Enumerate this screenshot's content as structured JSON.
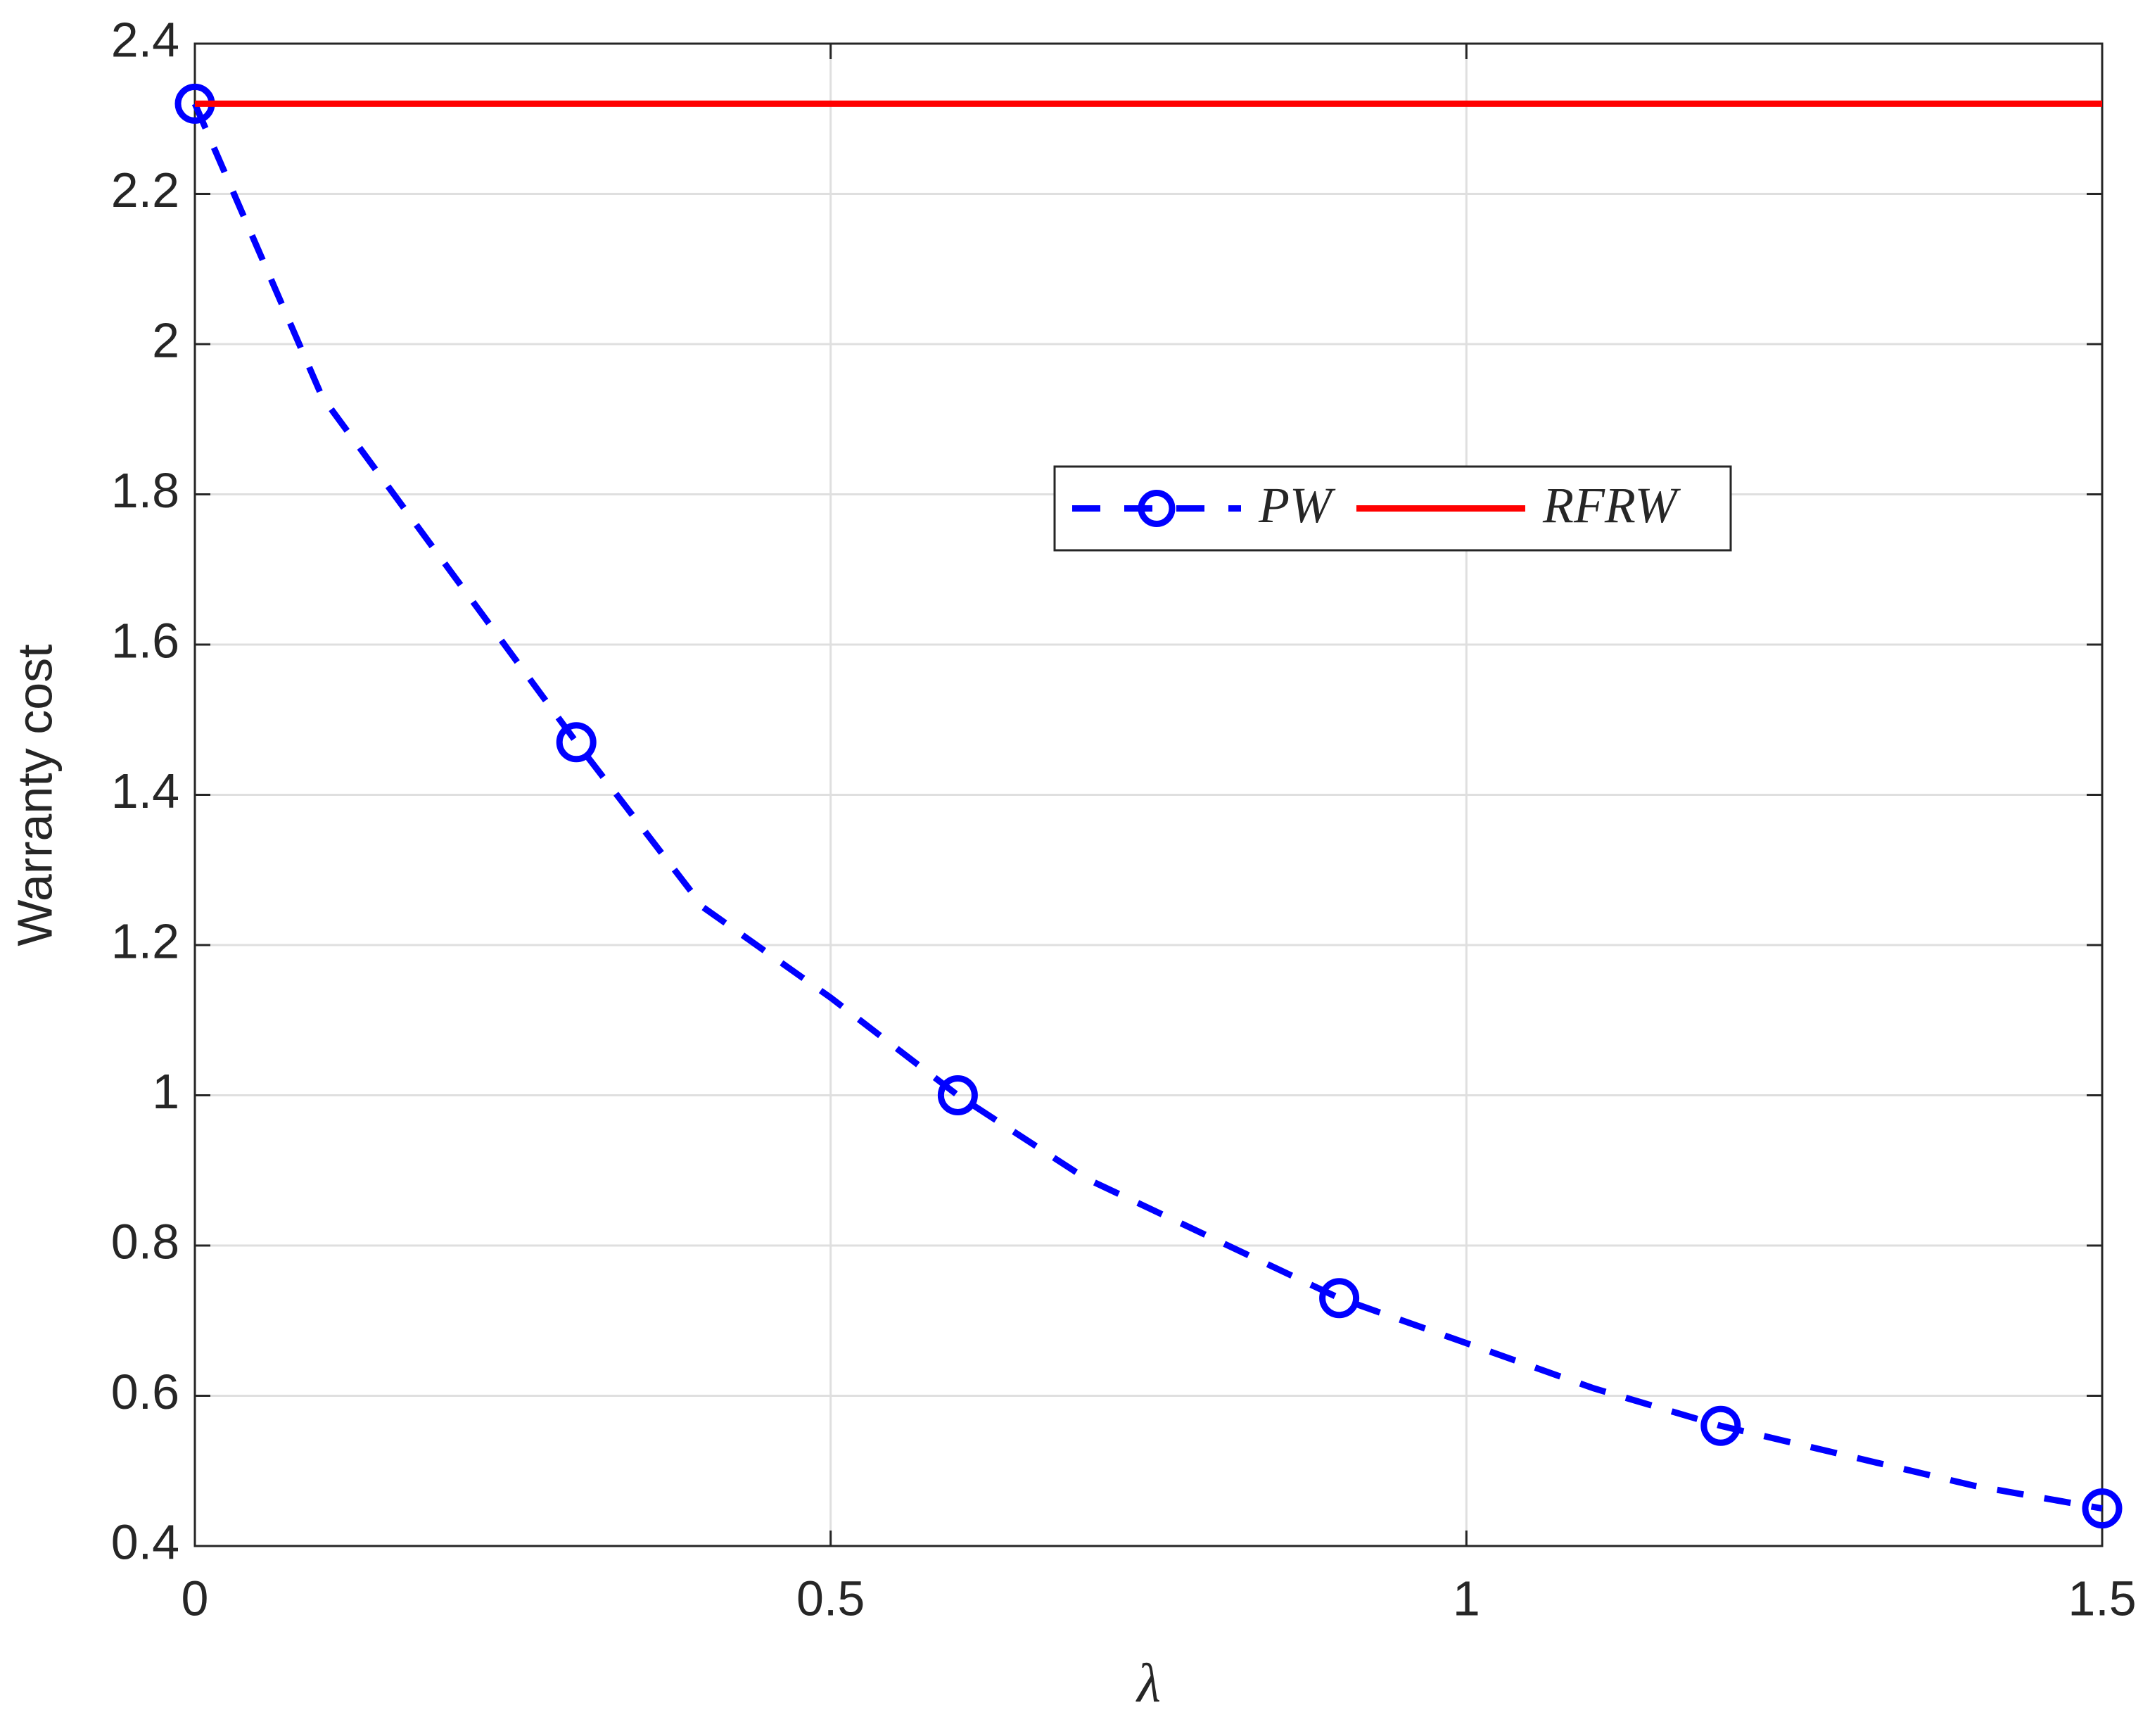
{
  "chart_data": {
    "type": "line",
    "x_label": "λ",
    "y_label": "Warranty cost",
    "xlim": [
      0,
      1.5
    ],
    "xticks": [
      0,
      0.5,
      1,
      1.5
    ],
    "ylim": [
      0.4,
      2.4
    ],
    "yticks": [
      0.4,
      0.6,
      0.8,
      1,
      1.2,
      1.4,
      1.6,
      1.8,
      2,
      2.2,
      2.4
    ],
    "grid": true,
    "legend": "center-right",
    "series": [
      {
        "name": "PW",
        "color": "#0000ff",
        "style": "dashed",
        "marker": "circle",
        "markevery": 3,
        "x": [
          0,
          0.1,
          0.2,
          0.3,
          0.4,
          0.5,
          0.6,
          0.7,
          0.8,
          0.9,
          1.0,
          1.1,
          1.2,
          1.3,
          1.4,
          1.5
        ],
        "values": [
          2.32,
          1.93,
          1.7,
          1.47,
          1.25,
          1.13,
          1.0,
          0.89,
          0.81,
          0.73,
          0.67,
          0.61,
          0.56,
          0.52,
          0.48,
          0.45
        ]
      },
      {
        "name": "RFRW",
        "color": "#ff0000",
        "style": "solid",
        "x": [
          0,
          1.5
        ],
        "values": [
          2.32,
          2.32
        ]
      }
    ]
  }
}
